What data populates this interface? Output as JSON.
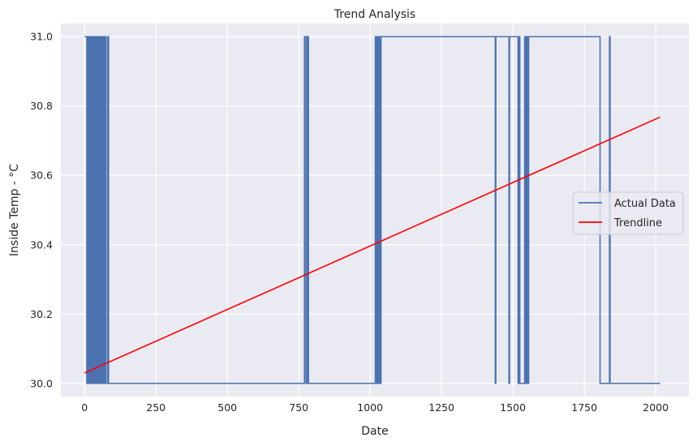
{
  "chart_data": {
    "type": "line",
    "title": "Trend Analysis",
    "xlabel": "Date",
    "ylabel": "Inside Temp - °C",
    "xlim": [
      -83,
      2116
    ],
    "ylim": [
      29.962,
      31.038
    ],
    "xticks": [
      0,
      250,
      500,
      750,
      1000,
      1250,
      1500,
      1750,
      2000
    ],
    "yticks": [
      30.0,
      30.2,
      30.4,
      30.6,
      30.8,
      31.0
    ],
    "ytick_labels": [
      "30.0",
      "30.2",
      "30.4",
      "30.6",
      "30.8",
      "31.0"
    ],
    "grid": true,
    "legend_position": "center-right",
    "background_color": "#eaeaf2",
    "series": [
      {
        "name": "Actual Data",
        "color": "#4c72b0",
        "x": [
          0,
          8,
          8,
          10,
          10,
          12,
          12,
          15,
          15,
          18,
          18,
          20,
          20,
          23,
          23,
          26,
          26,
          30,
          30,
          33,
          33,
          36,
          36,
          40,
          40,
          44,
          44,
          47,
          47,
          51,
          51,
          55,
          55,
          58,
          58,
          62,
          62,
          66,
          66,
          70,
          70,
          74,
          74,
          80,
          80,
          84,
          84,
          86,
          86,
          770,
          770,
          775,
          775,
          780,
          780,
          784,
          784,
          788,
          788,
          1018,
          1018,
          1021,
          1021,
          1024,
          1024,
          1027,
          1027,
          1030,
          1030,
          1034,
          1034,
          1038,
          1038,
          1438,
          1438,
          1440,
          1440,
          1486,
          1486,
          1488,
          1488,
          1518,
          1518,
          1520,
          1520,
          1524,
          1524,
          1541,
          1541,
          1543,
          1543,
          1547,
          1547,
          1551,
          1551,
          1555,
          1555,
          1558,
          1558,
          1805,
          1805,
          1838,
          1838,
          1840,
          1840,
          2015
        ],
        "y": [
          31,
          31,
          30,
          30,
          31,
          31,
          30,
          30,
          31,
          31,
          30,
          30,
          31,
          31,
          30,
          30,
          31,
          31,
          30,
          30,
          31,
          31,
          30,
          30,
          31,
          31,
          30,
          30,
          31,
          31,
          30,
          30,
          31,
          31,
          30,
          30,
          31,
          31,
          30,
          30,
          31,
          31,
          30,
          30,
          31,
          31,
          30,
          30,
          30,
          30,
          31,
          31,
          30,
          30,
          31,
          31,
          30,
          30,
          30,
          30,
          31,
          31,
          30,
          30,
          31,
          31,
          30,
          30,
          31,
          31,
          30,
          30,
          31,
          31,
          30,
          30,
          31,
          31,
          30,
          30,
          31,
          31,
          30,
          30,
          31,
          31,
          30,
          30,
          31,
          31,
          30,
          30,
          31,
          31,
          30,
          30,
          31,
          31,
          31,
          31,
          30,
          30,
          31,
          31,
          30,
          30
        ]
      },
      {
        "name": "Trendline",
        "color": "#ff0000",
        "x": [
          0,
          2015
        ],
        "y": [
          30.03,
          30.768
        ]
      }
    ]
  }
}
